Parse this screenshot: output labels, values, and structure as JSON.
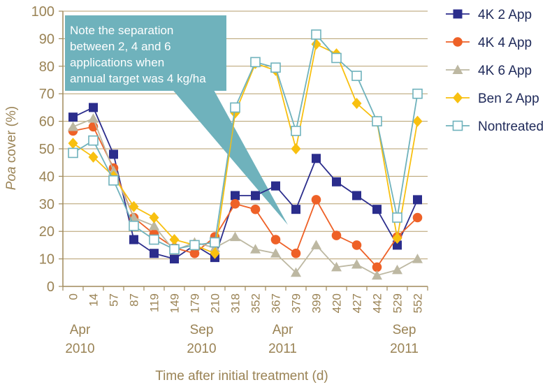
{
  "chart_data": {
    "type": "line",
    "ylabel_italic": "Poa",
    "ylabel_rest": " cover (%)",
    "xlabel": "Time after initial treatment (d)",
    "ylim": [
      0,
      100
    ],
    "y_ticks": [
      "0",
      "10",
      "20",
      "30",
      "40",
      "50",
      "60",
      "70",
      "80",
      "90",
      "100"
    ],
    "categories": [
      "0",
      "14",
      "57",
      "87",
      "119",
      "149",
      "179",
      "210",
      "318",
      "352",
      "367",
      "379",
      "399",
      "420",
      "427",
      "442",
      "529",
      "552"
    ],
    "date_labels": [
      {
        "at_index": 0,
        "month": "Apr",
        "year": "2010"
      },
      {
        "at_index": 6,
        "month": "Sep",
        "year": "2010"
      },
      {
        "at_index": 10,
        "month": "Apr",
        "year": "2011"
      },
      {
        "at_index": 16,
        "month": "Sep",
        "year": "2011"
      }
    ],
    "series": [
      {
        "name": "4K 2 App",
        "color": "#2b2d8c",
        "marker": "square-filled",
        "values": [
          61.5,
          65,
          48,
          17,
          12,
          10,
          15,
          10.5,
          33,
          33,
          36.5,
          28,
          46.5,
          38,
          33,
          28,
          15,
          31.5
        ]
      },
      {
        "name": "4K 4 App",
        "color": "#ee6127",
        "marker": "circle-filled",
        "values": [
          56.5,
          58,
          43,
          25,
          19,
          14,
          12,
          18,
          30,
          28,
          17,
          12,
          31.5,
          18.5,
          15,
          7,
          18,
          25
        ]
      },
      {
        "name": "4K 6 App",
        "color": "#bdb8a2",
        "marker": "triangle-filled",
        "values": [
          58,
          61,
          42,
          25,
          22,
          13,
          16,
          14,
          18,
          13.5,
          12,
          5,
          15,
          7,
          8,
          4,
          6,
          10
        ]
      },
      {
        "name": "Ben 2 App",
        "color": "#f8c010",
        "marker": "diamond-filled",
        "values": [
          52,
          47,
          40,
          29,
          25,
          17,
          15,
          12,
          63,
          81,
          78.5,
          50,
          88,
          84.5,
          66.5,
          60,
          17.5,
          60
        ]
      },
      {
        "name": "Nontreated",
        "color": "#6fb2bc",
        "marker": "square-open",
        "values": [
          48.5,
          53,
          38.5,
          22,
          17,
          13.5,
          15,
          16,
          65,
          81.5,
          79.5,
          56.5,
          91.5,
          83,
          76.5,
          60,
          25,
          70
        ]
      }
    ],
    "callout": {
      "lines": [
        "Note the separation",
        "between 2, 4 and 6",
        "applications when",
        "annual target was 4 kg/ha"
      ],
      "color": "#6fb2bc"
    },
    "legend_position": "right"
  }
}
